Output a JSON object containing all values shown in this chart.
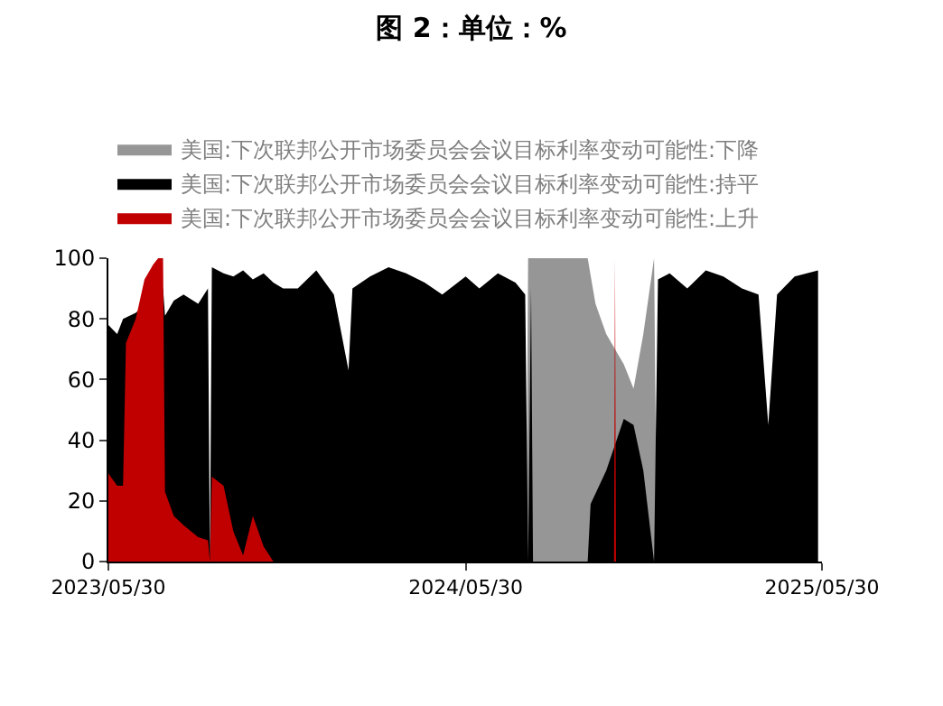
{
  "chart_data": {
    "type": "area",
    "title": "图 2：单位：%",
    "xlim": [
      "2023-05-30",
      "2025-05-30"
    ],
    "xticks": [
      {
        "value": "2023-05-30",
        "label": "2023/05/30"
      },
      {
        "value": "2024-05-30",
        "label": "2024/05/30"
      },
      {
        "value": "2025-05-30",
        "label": "2025/05/30"
      }
    ],
    "ylim": [
      0,
      100
    ],
    "yticks": [
      0,
      20,
      40,
      60,
      80,
      100
    ],
    "grid": false,
    "legend": "top",
    "series": [
      {
        "name": "美国:下次联邦公开市场委员会会议目标利率变动可能性:下降",
        "color": "#969696",
        "x": [
          "2024-07-31",
          "2024-08-02",
          "2024-08-26",
          "2024-09-14",
          "2024-10-02",
          "2024-10-10",
          "2024-10-21",
          "2024-11-08",
          "2024-11-18",
          "2024-11-28",
          "2024-12-09",
          "2024-12-12"
        ],
        "values": [
          0,
          100,
          100,
          100,
          100,
          85,
          75,
          65,
          57,
          75,
          100,
          0
        ]
      },
      {
        "name": "美国:下次联邦公开市场委员会会议目标利率变动可能性:持平",
        "color": "#000000",
        "x": [
          "2023-05-30",
          "2023-06-08",
          "2023-06-14",
          "2023-06-27",
          "2023-07-25",
          "2023-07-27",
          "2023-08-05",
          "2023-08-15",
          "2023-08-30",
          "2023-09-09",
          "2023-09-11",
          "2023-09-13",
          "2023-09-25",
          "2023-10-05",
          "2023-10-15",
          "2023-10-25",
          "2023-11-05",
          "2023-11-15",
          "2023-11-25",
          "2023-12-10",
          "2023-12-29",
          "2024-01-16",
          "2024-01-31",
          "2024-02-04",
          "2024-02-22",
          "2024-03-12",
          "2024-03-30",
          "2024-04-18",
          "2024-05-06",
          "2024-05-30",
          "2024-06-13",
          "2024-07-02",
          "2024-07-20",
          "2024-07-30",
          "2024-08-02",
          "2024-08-05",
          "2024-08-07",
          "2024-08-26",
          "2024-09-14",
          "2024-10-02",
          "2024-10-05",
          "2024-10-21",
          "2024-11-08",
          "2024-11-18",
          "2024-11-28",
          "2024-12-09",
          "2024-12-13",
          "2024-12-25",
          "2025-01-12",
          "2025-01-31",
          "2025-02-18",
          "2025-03-09",
          "2025-03-26",
          "2025-04-05",
          "2025-04-14",
          "2025-05-02",
          "2025-05-26"
        ],
        "values": [
          78,
          75,
          80,
          82,
          90,
          81,
          86,
          88,
          85,
          90,
          0,
          97,
          95,
          94,
          96,
          93,
          95,
          92,
          90,
          90,
          96,
          88,
          63,
          90,
          94,
          97,
          95,
          92,
          88,
          94,
          90,
          95,
          92,
          88,
          0,
          90,
          0,
          0,
          0,
          0,
          19,
          30,
          47,
          45,
          30,
          0,
          93,
          95,
          90,
          96,
          94,
          90,
          88,
          45,
          88,
          94,
          96
        ]
      },
      {
        "name": "美国:下次联邦公开市场委员会会议目标利率变动可能性:上升",
        "color": "#c00000",
        "x": [
          "2023-05-30",
          "2023-06-08",
          "2023-06-14",
          "2023-06-17",
          "2023-06-27",
          "2023-07-06",
          "2023-07-15",
          "2023-07-20",
          "2023-07-25",
          "2023-07-27",
          "2023-08-05",
          "2023-08-15",
          "2023-08-30",
          "2023-09-09",
          "2023-09-11",
          "2023-09-13",
          "2023-09-25",
          "2023-10-05",
          "2023-10-15",
          "2023-10-25",
          "2023-11-05",
          "2023-11-15",
          "2024-10-29",
          "2024-10-30",
          "2024-10-31"
        ],
        "values": [
          29,
          25,
          25,
          72,
          80,
          93,
          98,
          100,
          100,
          23,
          15,
          12,
          8,
          7,
          0,
          28,
          25,
          10,
          2,
          15,
          5,
          0,
          0,
          100,
          0
        ]
      }
    ]
  }
}
